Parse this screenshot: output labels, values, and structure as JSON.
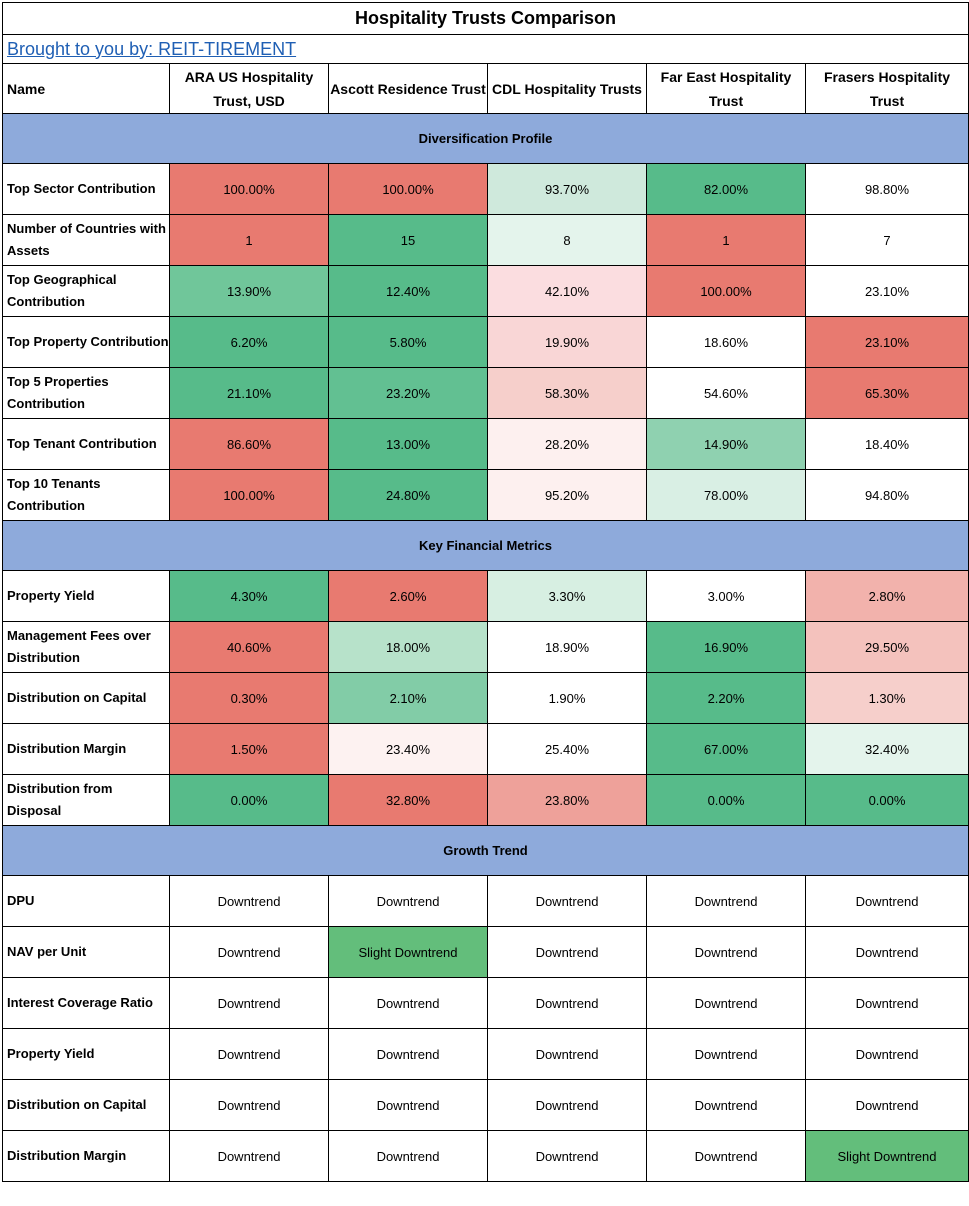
{
  "title": "Hospitality Trusts Comparison",
  "brand": "Brought to you by: REIT-TIREMENT",
  "headers": [
    "Name",
    "ARA US Hospitality Trust, USD",
    "Ascott Residence Trust",
    "CDL Hospitality Trusts",
    "Far East Hospitality Trust",
    "Frasers Hospitality Trust"
  ],
  "sections": [
    {
      "title": "Diversification Profile",
      "rows": [
        {
          "label": "Top Sector Contribution",
          "values": [
            "100.00%",
            "100.00%",
            "93.70%",
            "82.00%",
            "98.80%"
          ],
          "colors": [
            "#e87a70",
            "#e87a70",
            "#cfe9dc",
            "#57bb8a",
            "#ffffff"
          ]
        },
        {
          "label": "Number of Countries with Assets",
          "values": [
            "1",
            "15",
            "8",
            "1",
            "7"
          ],
          "colors": [
            "#e87a70",
            "#57bb8a",
            "#e4f4ec",
            "#e87a70",
            "#ffffff"
          ]
        },
        {
          "label": "Top Geographical Contribution",
          "values": [
            "13.90%",
            "12.40%",
            "42.10%",
            "100.00%",
            "23.10%"
          ],
          "colors": [
            "#70c69a",
            "#57bb8a",
            "#fbdde0",
            "#e87a70",
            "#ffffff"
          ]
        },
        {
          "label": "Top Property Contribution",
          "values": [
            "6.20%",
            "5.80%",
            "19.90%",
            "18.60%",
            "23.10%"
          ],
          "colors": [
            "#57bb8a",
            "#57bb8a",
            "#f9d6d6",
            "#ffffff",
            "#e87a70"
          ]
        },
        {
          "label": "Top 5 Properties Contribution",
          "values": [
            "21.10%",
            "23.20%",
            "58.30%",
            "54.60%",
            "65.30%"
          ],
          "colors": [
            "#57bb8a",
            "#62c092",
            "#f6cfcb",
            "#ffffff",
            "#e87a70"
          ]
        },
        {
          "label": "Top Tenant Contribution",
          "values": [
            "86.60%",
            "13.00%",
            "28.20%",
            "14.90%",
            "18.40%"
          ],
          "colors": [
            "#e87a70",
            "#57bb8a",
            "#fdf0ef",
            "#8fd1b0",
            "#ffffff"
          ]
        },
        {
          "label": "Top 10 Tenants Contribution",
          "values": [
            "100.00%",
            "24.80%",
            "95.20%",
            "78.00%",
            "94.80%"
          ],
          "colors": [
            "#e87a70",
            "#57bb8a",
            "#fdf0ef",
            "#d9efe4",
            "#ffffff"
          ]
        }
      ]
    },
    {
      "title": "Key Financial Metrics",
      "rows": [
        {
          "label": "Property Yield",
          "values": [
            "4.30%",
            "2.60%",
            "3.30%",
            "3.00%",
            "2.80%"
          ],
          "colors": [
            "#57bb8a",
            "#e87a70",
            "#d7efe2",
            "#ffffff",
            "#f2b2ac"
          ]
        },
        {
          "label": "Management Fees over Distribution",
          "values": [
            "40.60%",
            "18.00%",
            "18.90%",
            "16.90%",
            "29.50%"
          ],
          "colors": [
            "#e87a70",
            "#b7e2ca",
            "#ffffff",
            "#57bb8a",
            "#f4c2bd"
          ]
        },
        {
          "label": "Distribution on Capital",
          "values": [
            "0.30%",
            "2.10%",
            "1.90%",
            "2.20%",
            "1.30%"
          ],
          "colors": [
            "#e87a70",
            "#82cca7",
            "#ffffff",
            "#57bb8a",
            "#f6cfcb"
          ]
        },
        {
          "label": "Distribution Margin",
          "values": [
            "1.50%",
            "23.40%",
            "25.40%",
            "67.00%",
            "32.40%"
          ],
          "colors": [
            "#e87a70",
            "#fdf2f1",
            "#ffffff",
            "#57bb8a",
            "#e4f4ec"
          ]
        },
        {
          "label": "Distribution from Disposal",
          "values": [
            "0.00%",
            "32.80%",
            "23.80%",
            "0.00%",
            "0.00%"
          ],
          "colors": [
            "#57bb8a",
            "#e87a70",
            "#eea19a",
            "#57bb8a",
            "#57bb8a"
          ]
        }
      ]
    },
    {
      "title": "Growth Trend",
      "rows": [
        {
          "label": "DPU",
          "values": [
            "Downtrend",
            "Downtrend",
            "Downtrend",
            "Downtrend",
            "Downtrend"
          ],
          "colors": [
            "#ffffff",
            "#ffffff",
            "#ffffff",
            "#ffffff",
            "#ffffff"
          ]
        },
        {
          "label": "NAV per Unit",
          "values": [
            "Downtrend",
            "Slight Downtrend",
            "Downtrend",
            "Downtrend",
            "Downtrend"
          ],
          "colors": [
            "#ffffff",
            "#63be7b",
            "#ffffff",
            "#ffffff",
            "#ffffff"
          ]
        },
        {
          "label": "Interest Coverage Ratio",
          "values": [
            "Downtrend",
            "Downtrend",
            "Downtrend",
            "Downtrend",
            "Downtrend"
          ],
          "colors": [
            "#ffffff",
            "#ffffff",
            "#ffffff",
            "#ffffff",
            "#ffffff"
          ]
        },
        {
          "label": "Property Yield",
          "values": [
            "Downtrend",
            "Downtrend",
            "Downtrend",
            "Downtrend",
            "Downtrend"
          ],
          "colors": [
            "#ffffff",
            "#ffffff",
            "#ffffff",
            "#ffffff",
            "#ffffff"
          ]
        },
        {
          "label": "Distribution on Capital",
          "values": [
            "Downtrend",
            "Downtrend",
            "Downtrend",
            "Downtrend",
            "Downtrend"
          ],
          "colors": [
            "#ffffff",
            "#ffffff",
            "#ffffff",
            "#ffffff",
            "#ffffff"
          ]
        },
        {
          "label": "Distribution Margin",
          "values": [
            "Downtrend",
            "Downtrend",
            "Downtrend",
            "Downtrend",
            "Slight Downtrend"
          ],
          "colors": [
            "#ffffff",
            "#ffffff",
            "#ffffff",
            "#ffffff",
            "#63be7b"
          ]
        }
      ]
    }
  ]
}
